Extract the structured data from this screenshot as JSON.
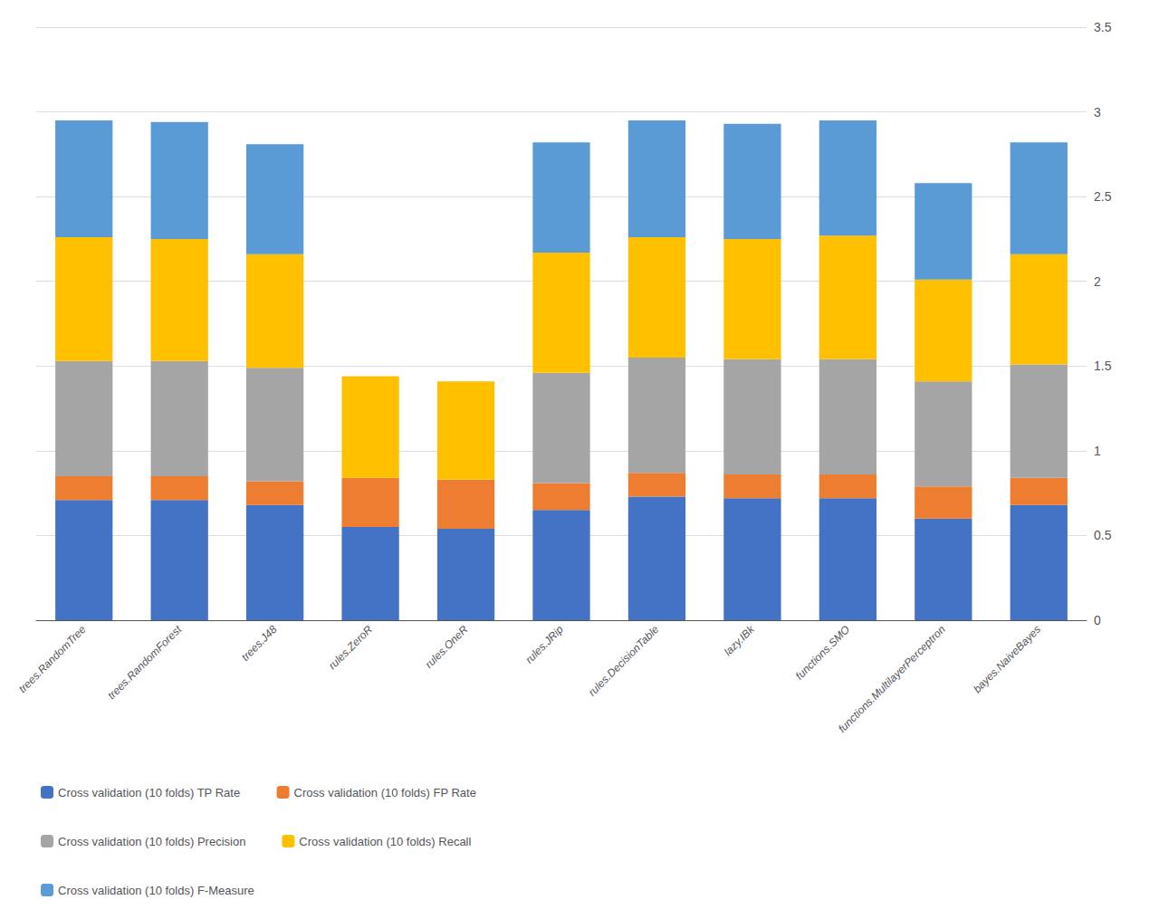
{
  "chart_data": {
    "type": "bar",
    "stacked": true,
    "categories": [
      "trees.RandomTree",
      "trees.RandomForest",
      "trees.J48",
      "rules.ZeroR",
      "rules.OneR",
      "rules.JRip",
      "rules.DecisionTable",
      "lazy.IBk",
      "functions.SMO",
      "functions.MultilayerPerceptron",
      "bayes.NaiveBayes"
    ],
    "series": [
      {
        "name": "Cross validation (10 folds) TP Rate",
        "color": "#4472C4",
        "values": [
          0.71,
          0.71,
          0.68,
          0.55,
          0.54,
          0.65,
          0.73,
          0.72,
          0.72,
          0.6,
          0.68
        ]
      },
      {
        "name": "Cross validation (10 folds) FP Rate",
        "color": "#ED7D31",
        "values": [
          0.14,
          0.14,
          0.14,
          0.29,
          0.29,
          0.16,
          0.14,
          0.14,
          0.14,
          0.19,
          0.16
        ]
      },
      {
        "name": "Cross validation (10 folds) Precision",
        "color": "#A5A5A5",
        "values": [
          0.68,
          0.68,
          0.67,
          0.0,
          0.0,
          0.65,
          0.68,
          0.68,
          0.68,
          0.62,
          0.67
        ]
      },
      {
        "name": "Cross validation (10 folds) Recall",
        "color": "#FFC000",
        "values": [
          0.73,
          0.72,
          0.67,
          0.6,
          0.58,
          0.71,
          0.71,
          0.71,
          0.73,
          0.6,
          0.65
        ]
      },
      {
        "name": "Cross validation (10 folds) F-Measure",
        "color": "#5B9BD5",
        "values": [
          0.69,
          0.69,
          0.65,
          0.0,
          0.0,
          0.65,
          0.69,
          0.68,
          0.68,
          0.57,
          0.66
        ]
      }
    ],
    "ylim": [
      0,
      3.5
    ],
    "yticks": [
      0,
      0.5,
      1,
      1.5,
      2,
      2.5,
      3,
      3.5
    ],
    "grid": true,
    "legend": "bottom"
  }
}
